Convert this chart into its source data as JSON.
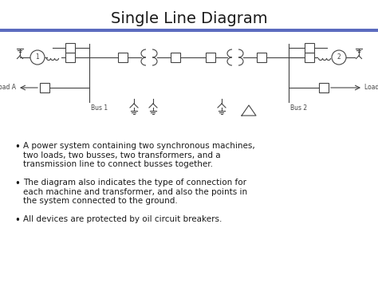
{
  "title": "Single Line Diagram",
  "title_fontsize": 14,
  "title_color": "#1a1a1a",
  "background_color": "#ffffff",
  "accent_bar_color": "#5b6bbf",
  "diagram_color": "#444444",
  "text_color": "#1a1a1a",
  "bullets": [
    "A power system containing two synchronous machines,\ntwo loads, two busses, two transformers, and a\ntransmission line to connect busses together.",
    "The diagram also indicates the type of connection for\neach machine and transformer, and also the points in\nthe system connected to the ground.",
    "All devices are protected by oil circuit breakers."
  ],
  "bullet_fontsize": 7.5,
  "figsize": [
    4.74,
    3.55
  ],
  "dpi": 100
}
